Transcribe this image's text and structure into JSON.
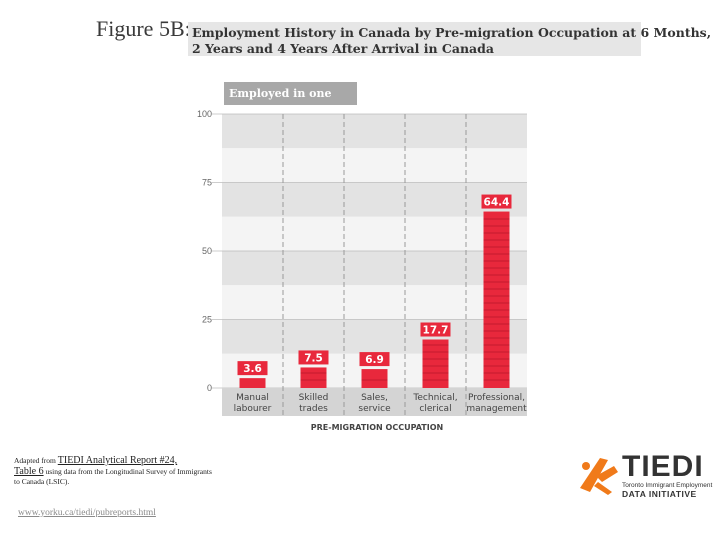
{
  "figure": {
    "label": "Figure 5B:",
    "title_line1": "Employment History in Canada by Pre-migration Occupation at 6 Months,",
    "title_line2": "2 Years and 4 Years After Arrival in Canada"
  },
  "chart_data": {
    "type": "bar",
    "title": "Employed in one wave (%)",
    "xlabel": "PRE-MIGRATION OCCUPATION",
    "ylabel": "",
    "ylim": [
      0,
      100
    ],
    "yticks": [
      0,
      25,
      50,
      75,
      100
    ],
    "categories": [
      [
        "Manual",
        "labourer"
      ],
      [
        "Skilled",
        "trades"
      ],
      [
        "Sales,",
        "service"
      ],
      [
        "Technical,",
        "clerical"
      ],
      [
        "Professional,",
        "management"
      ]
    ],
    "values": [
      3.6,
      7.5,
      6.9,
      17.7,
      64.4
    ],
    "value_labels": [
      "3.6",
      "7.5",
      "6.9",
      "17.7",
      "64.4"
    ],
    "bar_color": "#e8283c",
    "grid": true
  },
  "source": {
    "prefix": "Adapted from ",
    "link": "TIEDI Analytical Report #24,",
    "link2": "Table 6",
    "suffix": " using data from the Longitudinal Survey of Immigrants to Canada (LSIC).",
    "url": "www.yorku.ca/tiedi/pubreports.html"
  },
  "logo": {
    "word": "TIEDI",
    "sub1": "Toronto Immigrant Employment",
    "sub2": "DATA INITIATIVE",
    "accent": "#f07a1a"
  }
}
